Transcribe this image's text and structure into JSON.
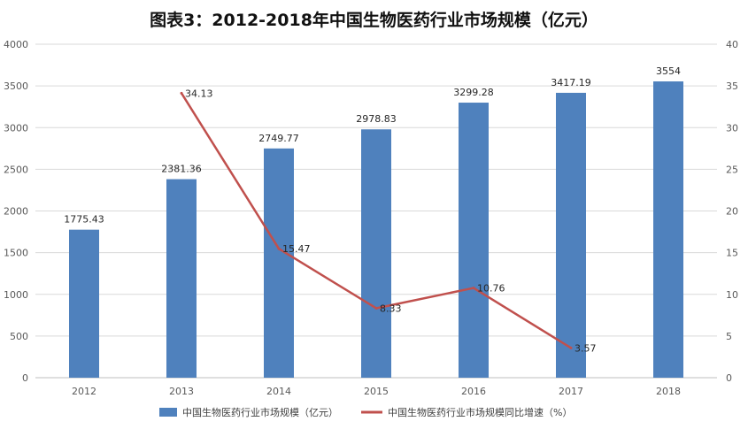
{
  "chart_data": {
    "type": "bar",
    "title": "图表3：2012-2018年中国生物医药行业市场规模（亿元）",
    "categories": [
      "2012",
      "2013",
      "2014",
      "2015",
      "2016",
      "2017",
      "2018"
    ],
    "series": [
      {
        "name": "中国生物医药行业市场规模（亿元）",
        "kind": "bar",
        "axis": "left",
        "color": "#4f81bd",
        "values": [
          1775.43,
          2381.36,
          2749.77,
          2978.83,
          3299.28,
          3417.19,
          3554
        ],
        "labels": [
          "1775.43",
          "2381.36",
          "2749.77",
          "2978.83",
          "3299.28",
          "3417.19",
          "3554"
        ]
      },
      {
        "name": "中国生物医药行业市场规模同比增速（%）",
        "kind": "line",
        "axis": "right",
        "color": "#c0504d",
        "values": [
          null,
          34.13,
          15.47,
          8.33,
          10.76,
          3.57,
          null
        ],
        "labels": [
          "",
          "34.13",
          "15.47",
          "8.33",
          "10.76",
          "3.57",
          ""
        ]
      }
    ],
    "y_left": {
      "ylim": [
        0,
        4000
      ],
      "ticks": [
        "0",
        "500",
        "1000",
        "1500",
        "2000",
        "2500",
        "3000",
        "3500",
        "4000"
      ]
    },
    "y_right": {
      "ylim": [
        0,
        40
      ],
      "ticks": [
        "0",
        "5",
        "10",
        "15",
        "20",
        "25",
        "30",
        "35",
        "40"
      ]
    },
    "grid": true,
    "legend_position": "bottom"
  }
}
